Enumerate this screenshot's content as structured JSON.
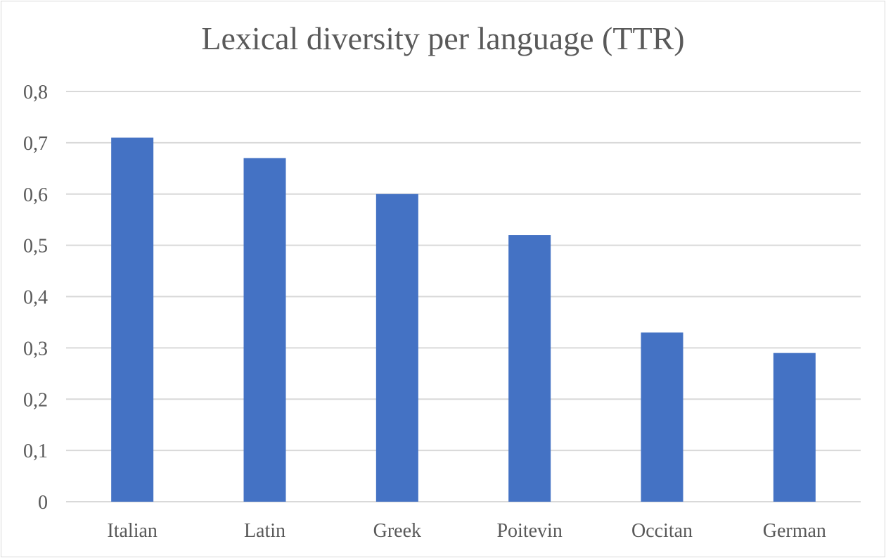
{
  "chart_data": {
    "type": "bar",
    "title": "Lexical diversity per language (TTR)",
    "xlabel": "",
    "ylabel": "",
    "categories": [
      "Italian",
      "Latin",
      "Greek",
      "Poitevin",
      "Occitan",
      "German"
    ],
    "values": [
      0.71,
      0.67,
      0.6,
      0.52,
      0.33,
      0.29
    ],
    "ylim": [
      0,
      0.8
    ],
    "yticks": [
      "0",
      "0,1",
      "0,2",
      "0,3",
      "0,4",
      "0,5",
      "0,6",
      "0,7",
      "0,8"
    ],
    "grid": true,
    "legend": "none",
    "bar_color": "#4472C4",
    "grid_color": "#d9d9d9",
    "text_color": "#595959"
  }
}
